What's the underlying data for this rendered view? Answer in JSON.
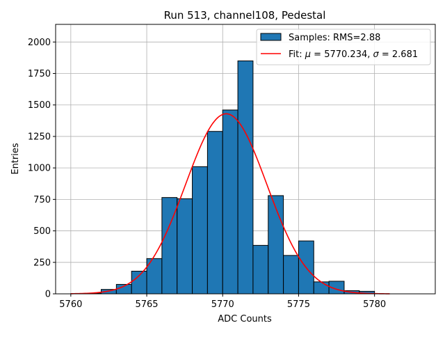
{
  "chart_data": {
    "type": "bar",
    "title": "Run 513, channel108, Pedestal",
    "xlabel": "ADC Counts",
    "ylabel": "Entries",
    "xlim": [
      5759.0,
      5784.0
    ],
    "ylim": [
      0,
      2140
    ],
    "xticks": [
      5760,
      5765,
      5770,
      5775,
      5780
    ],
    "yticks": [
      0,
      250,
      500,
      750,
      1000,
      1250,
      1500,
      1750,
      2000
    ],
    "grid": true,
    "legend_position": "top-right",
    "bin_width": 1,
    "series": [
      {
        "name": "Samples: RMS=2.88",
        "kind": "histogram",
        "color": "#1f77b4",
        "edgecolor": "#000000",
        "bins": [
          5760,
          5761,
          5762,
          5763,
          5764,
          5765,
          5766,
          5767,
          5768,
          5769,
          5770,
          5771,
          5772,
          5773,
          5774,
          5775,
          5776,
          5777,
          5778,
          5779,
          5780,
          5781,
          5782
        ],
        "values": [
          2,
          5,
          35,
          75,
          180,
          280,
          765,
          755,
          1010,
          1290,
          1460,
          1850,
          385,
          780,
          305,
          420,
          95,
          100,
          25,
          20,
          0,
          0,
          0
        ]
      },
      {
        "name_prefix": "Fit: ",
        "name_mu": "μ",
        "name_mid": " = 5770.234, ",
        "name_sigma": "σ",
        "name_suffix": " = 2.681",
        "kind": "line",
        "color": "#ff0000",
        "mu": 5770.234,
        "sigma": 2.681,
        "amplitude": 1430,
        "x_range": [
          5760,
          5781
        ]
      }
    ]
  }
}
